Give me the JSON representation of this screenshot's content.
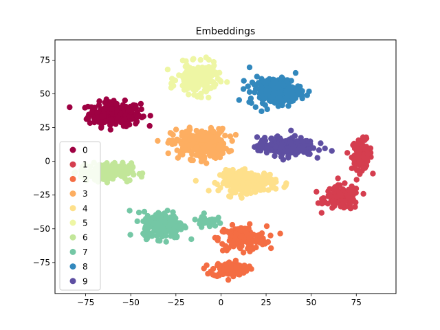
{
  "chart_data": {
    "type": "scatter",
    "title": "Embeddings",
    "xlabel": "",
    "ylabel": "",
    "xlim": [
      -92,
      97
    ],
    "ylim": [
      -98,
      90
    ],
    "xticks": [
      -75,
      -50,
      -25,
      0,
      25,
      50,
      75
    ],
    "yticks": [
      -75,
      -50,
      -25,
      0,
      25,
      50,
      75
    ],
    "xtick_labels": [
      "−75",
      "−50",
      "−25",
      "0",
      "25",
      "50",
      "75"
    ],
    "ytick_labels": [
      "−75",
      "−50",
      "−25",
      "0",
      "25",
      "50",
      "75"
    ],
    "grid": false,
    "legend_position": "center-left",
    "series": [
      {
        "name": "0",
        "color": "#9e0142",
        "clusters": [
          {
            "cx": -59,
            "cy": 35,
            "sx": 13,
            "sy": 8,
            "n": 240
          }
        ]
      },
      {
        "name": "1",
        "color": "#d53e4f",
        "clusters": [
          {
            "cx": 78,
            "cy": 5,
            "sx": 5,
            "sy": 10,
            "n": 110
          },
          {
            "cx": 67,
            "cy": -27,
            "sx": 9,
            "sy": 8,
            "n": 140
          }
        ]
      },
      {
        "name": "2",
        "color": "#f46d43",
        "clusters": [
          {
            "cx": 12,
            "cy": -57,
            "sx": 12,
            "sy": 8,
            "n": 160
          },
          {
            "cx": 5,
            "cy": -80,
            "sx": 9,
            "sy": 5,
            "n": 110
          }
        ]
      },
      {
        "name": "3",
        "color": "#fdae61",
        "clusters": [
          {
            "cx": -12,
            "cy": 13,
            "sx": 14,
            "sy": 10,
            "n": 240
          }
        ]
      },
      {
        "name": "4",
        "color": "#fee08b",
        "clusters": [
          {
            "cx": 15,
            "cy": -15,
            "sx": 14,
            "sy": 7,
            "n": 220
          }
        ]
      },
      {
        "name": "5",
        "color": "#eef6a4",
        "clusters": [
          {
            "cx": -13,
            "cy": 61,
            "sx": 10,
            "sy": 10,
            "n": 200
          }
        ]
      },
      {
        "name": "6",
        "color": "#c2e699",
        "clusters": [
          {
            "cx": -64,
            "cy": -8,
            "sx": 13,
            "sy": 6,
            "n": 200
          }
        ]
      },
      {
        "name": "7",
        "color": "#74c7a5",
        "clusters": [
          {
            "cx": -32,
            "cy": -47,
            "sx": 10,
            "sy": 9,
            "n": 220
          },
          {
            "cx": -8,
            "cy": -44,
            "sx": 5,
            "sy": 4,
            "n": 40
          }
        ]
      },
      {
        "name": "8",
        "color": "#3288bd",
        "clusters": [
          {
            "cx": 30,
            "cy": 52,
            "sx": 13,
            "sy": 9,
            "n": 240
          }
        ]
      },
      {
        "name": "9",
        "color": "#5e4fa2",
        "clusters": [
          {
            "cx": 36,
            "cy": 11,
            "sx": 14,
            "sy": 6,
            "n": 220
          }
        ]
      }
    ]
  }
}
